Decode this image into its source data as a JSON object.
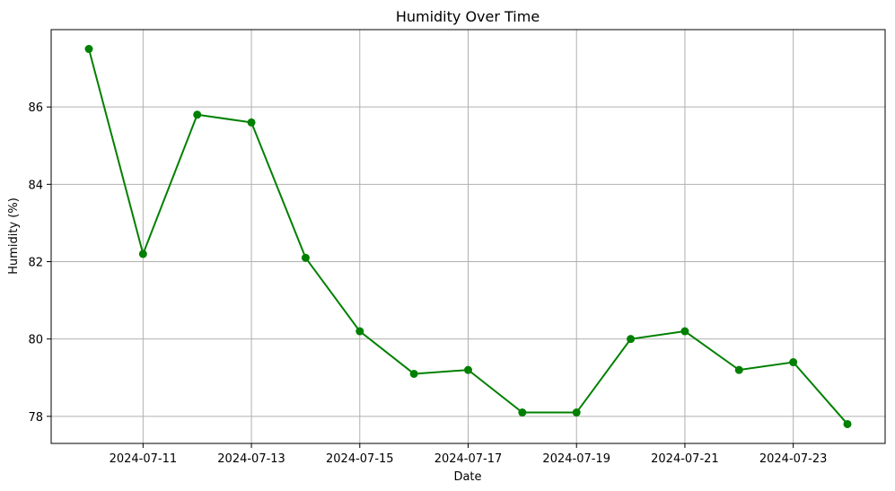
{
  "chart_data": {
    "type": "line",
    "title": "Humidity Over Time",
    "xlabel": "Date",
    "ylabel": "Humidity (%)",
    "x": [
      "2024-07-10",
      "2024-07-11",
      "2024-07-12",
      "2024-07-13",
      "2024-07-14",
      "2024-07-15",
      "2024-07-16",
      "2024-07-17",
      "2024-07-18",
      "2024-07-19",
      "2024-07-20",
      "2024-07-21",
      "2024-07-22",
      "2024-07-23",
      "2024-07-24"
    ],
    "series": [
      {
        "name": "Humidity",
        "values": [
          87.5,
          82.2,
          85.8,
          85.6,
          82.1,
          80.2,
          79.1,
          79.2,
          78.1,
          78.1,
          80.0,
          80.2,
          79.2,
          79.4,
          77.8
        ],
        "color": "#008000",
        "marker": "circle"
      }
    ],
    "xticks": [
      "2024-07-11",
      "2024-07-13",
      "2024-07-15",
      "2024-07-17",
      "2024-07-19",
      "2024-07-21",
      "2024-07-23"
    ],
    "yticks": [
      78,
      80,
      82,
      84,
      86
    ],
    "ylim": [
      77.3,
      88.0
    ],
    "grid": true,
    "grid_color": "#b0b0b0"
  }
}
